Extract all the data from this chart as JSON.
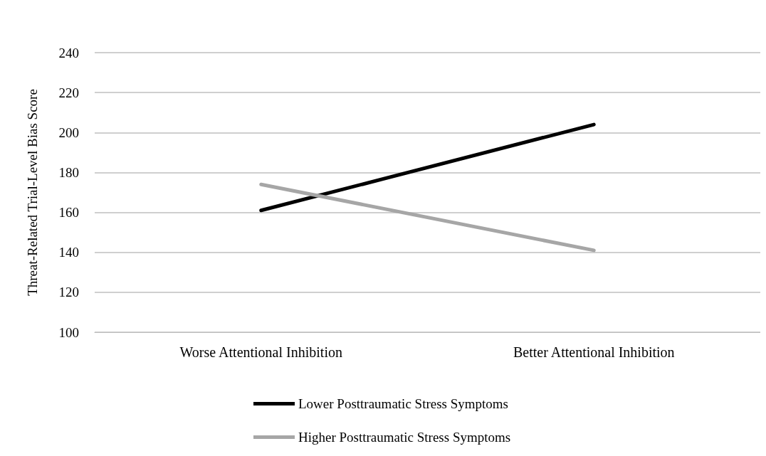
{
  "chart_data": {
    "type": "line",
    "ylabel": "Threat-Related Trial-Level Bias Score",
    "categories": [
      "Worse Attentional Inhibition",
      "Better Attentional Inhibition"
    ],
    "series": [
      {
        "name": "Lower Posttraumatic Stress Symptoms",
        "color": "#000000",
        "values": [
          161,
          204
        ]
      },
      {
        "name": "Higher Posttraumatic Stress Symptoms",
        "color": "#a6a6a6",
        "values": [
          174,
          141
        ]
      }
    ],
    "ylim": [
      100,
      240
    ],
    "yticks": [
      100,
      120,
      140,
      160,
      180,
      200,
      220,
      240
    ],
    "grid": "y",
    "legend": "bottom",
    "marker": "none",
    "line_style": "solid"
  }
}
